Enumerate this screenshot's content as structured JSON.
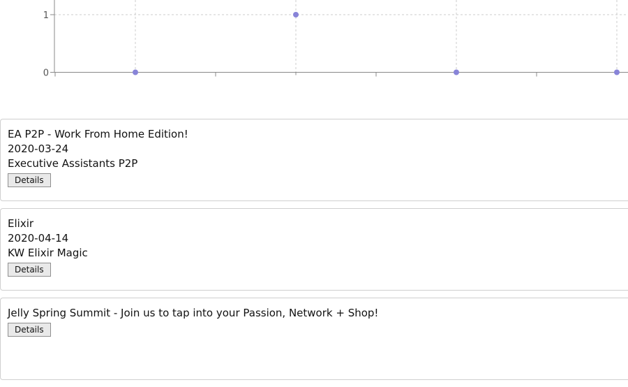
{
  "chart_data": {
    "type": "scatter",
    "x_count": 4,
    "values": [
      0,
      1,
      0,
      0
    ],
    "y_ticks": [
      0,
      1
    ],
    "ylim": [
      0,
      1.2
    ],
    "grid": true,
    "point_color": "#8884d8",
    "grid_color": "#cccccc",
    "axis_color": "#888888"
  },
  "events": [
    {
      "title": "EA P2P - Work From Home Edition!",
      "date": "2020-03-24",
      "organizer": "Executive Assistants P2P",
      "button_label": "Details"
    },
    {
      "title": "Elixir",
      "date": "2020-04-14",
      "organizer": "KW Elixir Magic",
      "button_label": "Details"
    },
    {
      "title": "Jelly Spring Summit - Join us to tap into your Passion, Network + Shop!",
      "date": "",
      "organizer": "",
      "button_label": "Details"
    }
  ]
}
